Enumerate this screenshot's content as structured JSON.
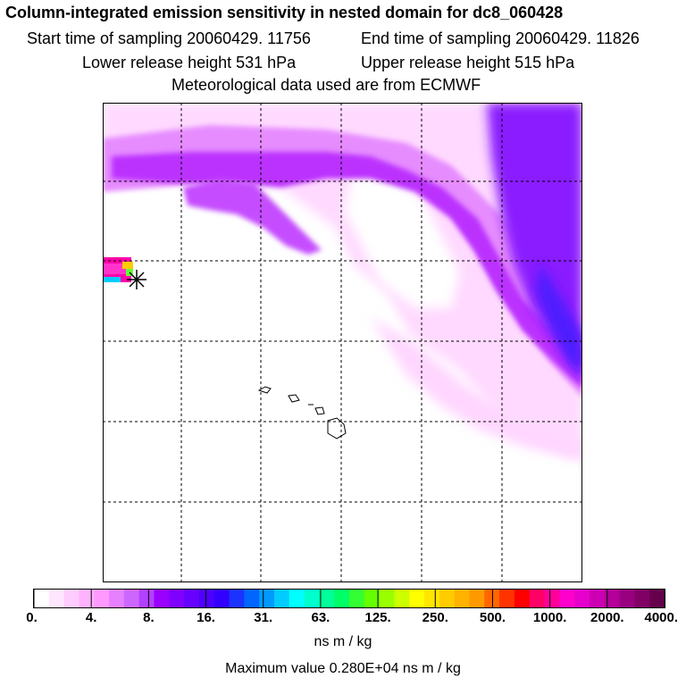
{
  "header": {
    "title": "Column-integrated emission sensitivity in nested domain for dc8_060428",
    "start_time": "Start time of sampling 20060429. 11756",
    "end_time": "End time of sampling 20060429. 11826",
    "lower_release": "Lower release height  531 hPa",
    "upper_release": "Upper release height  515 hPa",
    "met_data": "Meteorological data used are from ECMWF"
  },
  "legend": {
    "ticks": [
      "0.",
      "4.",
      "8.",
      "16.",
      "31.",
      "63.",
      "125.",
      "250.",
      "500.",
      "1000.",
      "2000.",
      "4000."
    ],
    "units": "ns m / kg",
    "colors": [
      "#ffffff",
      "#ffe6ff",
      "#ffccff",
      "#ffb3ff",
      "#ff99ff",
      "#e680ff",
      "#cc66ff",
      "#b340ff",
      "#9900ff",
      "#8000ff",
      "#6600ff",
      "#4d00ff",
      "#3300ff",
      "#1a33ff",
      "#0066ff",
      "#0099ff",
      "#00ccff",
      "#00ffff",
      "#00ffcc",
      "#00ff99",
      "#00ff66",
      "#33ff33",
      "#66ff00",
      "#99ff00",
      "#ccff00",
      "#ffff00",
      "#ffe600",
      "#ffcc00",
      "#ffb300",
      "#ff9900",
      "#ff6600",
      "#ff3300",
      "#ff0000",
      "#ff0066",
      "#ff0099",
      "#ff00cc",
      "#e600cc",
      "#cc00b3",
      "#b30099",
      "#990080",
      "#800066",
      "#66004d"
    ]
  },
  "footer": {
    "max_value": "Maximum value  0.280E+04 ns m / kg"
  },
  "map": {
    "release_marker": "star-marker",
    "grid_rows": 6,
    "grid_cols": 6
  }
}
